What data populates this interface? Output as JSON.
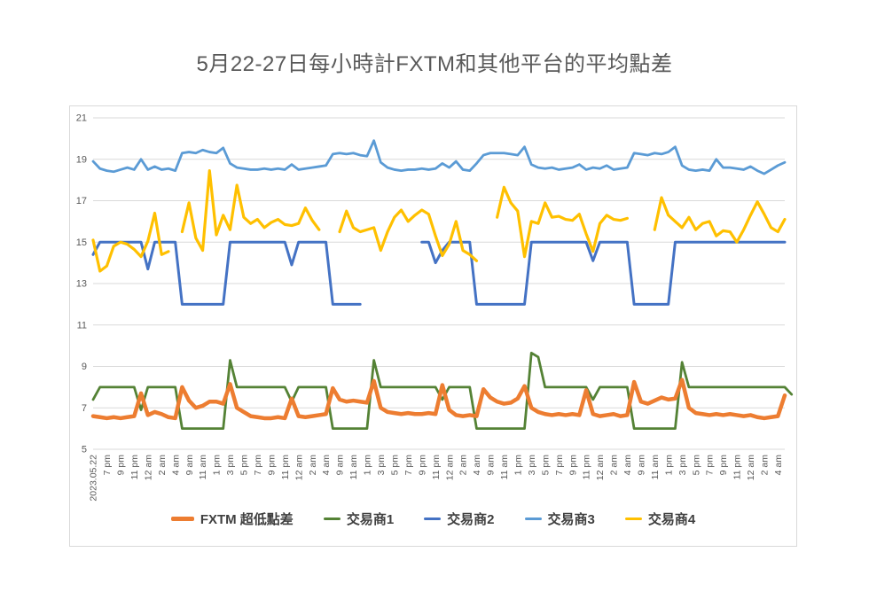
{
  "title": {
    "text": "5月22-27日每小時計FXTM和其他平台的平均點差"
  },
  "colors": {
    "title_text": "#595959",
    "axis_text": "#595959",
    "gridline": "#d9d9d9",
    "card_border": "#d9d9d9",
    "background": "#ffffff"
  },
  "chart_data": {
    "type": "line",
    "title": "5月22-27日每小時計FXTM和其他平台的平均點差",
    "xlabel": "",
    "ylabel": "",
    "ylim": [
      5,
      21
    ],
    "y_ticks": [
      21,
      19,
      17,
      15,
      13,
      11,
      9,
      7,
      5
    ],
    "grid": true,
    "legend_position": "bottom",
    "label_every_n_points": 2,
    "x_tick_labels": [
      "2023.05.22",
      "7 pm",
      "9 pm",
      "11 pm",
      "12 am",
      "2 am",
      "4 am",
      "9 am",
      "11 am",
      "1 pm",
      "3 pm",
      "5 pm",
      "7 pm",
      "9 pm",
      "11 pm",
      "12 am",
      "2 am",
      "4 am",
      "9 am",
      "11 am",
      "1 pm",
      "3 pm",
      "5 pm",
      "7 pm",
      "9 pm",
      "11 pm",
      "12 am",
      "2 am",
      "4 am",
      "9 am",
      "11 am",
      "1 pm",
      "3 pm",
      "5 pm",
      "7 pm",
      "9 pm",
      "11 pm",
      "12 am",
      "2 am",
      "4 am",
      "9 am",
      "11 am",
      "1 pm",
      "3 pm",
      "5 pm",
      "7 pm",
      "9 pm",
      "11 pm",
      "12 am",
      "2 am",
      "4 am"
    ],
    "series": [
      {
        "name": "FXTM 超低點差",
        "color": "#ED7D31",
        "width": 4.5,
        "values": [
          6.6,
          6.55,
          6.5,
          6.55,
          6.5,
          6.55,
          6.6,
          7.7,
          6.65,
          6.8,
          6.7,
          6.55,
          6.5,
          8.0,
          7.35,
          7.0,
          7.1,
          7.3,
          7.3,
          7.2,
          8.15,
          7.0,
          6.8,
          6.6,
          6.55,
          6.5,
          6.5,
          6.55,
          6.5,
          7.45,
          6.6,
          6.55,
          6.6,
          6.65,
          6.7,
          7.95,
          7.4,
          7.3,
          7.35,
          7.3,
          7.25,
          8.3,
          7.0,
          6.8,
          6.75,
          6.7,
          6.75,
          6.7,
          6.7,
          6.75,
          6.7,
          8.1,
          6.9,
          6.65,
          6.6,
          6.65,
          6.6,
          7.9,
          7.5,
          7.3,
          7.2,
          7.25,
          7.45,
          8.05,
          7.0,
          6.8,
          6.7,
          6.65,
          6.7,
          6.65,
          6.7,
          6.65,
          7.85,
          6.7,
          6.6,
          6.65,
          6.7,
          6.6,
          6.65,
          8.25,
          7.3,
          7.2,
          7.35,
          7.5,
          7.4,
          7.45,
          8.35,
          7.0,
          6.75,
          6.7,
          6.65,
          6.7,
          6.65,
          6.7,
          6.65,
          6.6,
          6.65,
          6.55,
          6.5,
          6.55,
          6.6,
          7.6
        ]
      },
      {
        "name": "交易商1",
        "color": "#548235",
        "width": 2.8,
        "values": [
          7.4,
          8,
          8,
          8,
          8,
          8,
          8,
          6.9,
          8,
          8,
          8,
          8,
          8,
          6,
          6,
          6,
          6,
          6,
          6,
          6,
          9.3,
          8,
          8,
          8,
          8,
          8,
          8,
          8,
          8,
          7.3,
          8,
          8,
          8,
          8,
          8,
          6,
          6,
          6,
          6,
          6,
          6,
          9.3,
          8,
          8,
          8,
          8,
          8,
          8,
          8,
          8,
          8,
          7.4,
          8,
          8,
          8,
          8,
          6,
          6,
          6,
          6,
          6,
          6,
          6,
          6,
          9.65,
          9.45,
          8,
          8,
          8,
          8,
          8,
          8,
          8,
          7.4,
          8,
          8,
          8,
          8,
          8,
          6,
          6,
          6,
          6,
          6,
          6,
          6,
          9.2,
          8,
          8,
          8,
          8,
          8,
          8,
          8,
          8,
          8,
          8,
          8,
          8,
          8,
          8,
          8,
          7.65
        ]
      },
      {
        "name": "交易商2",
        "color": "#4472C4",
        "width": 3,
        "values": [
          14.4,
          15,
          15,
          15,
          15,
          15,
          15,
          15,
          13.7,
          15,
          15,
          15,
          15,
          12,
          12,
          12,
          12,
          12,
          12,
          12,
          15,
          15,
          15,
          15,
          15,
          15,
          15,
          15,
          15,
          13.9,
          15,
          15,
          15,
          15,
          15,
          12,
          12,
          12,
          12,
          12,
          null,
          null,
          null,
          null,
          null,
          null,
          null,
          null,
          15,
          15,
          14.0,
          14.6,
          15,
          15,
          15,
          15,
          12,
          12,
          12,
          12,
          12,
          12,
          12,
          12,
          15,
          15,
          15,
          15,
          15,
          15,
          15,
          15,
          15,
          14.1,
          15,
          15,
          15,
          15,
          15,
          12,
          12,
          12,
          12,
          12,
          12,
          15,
          15,
          15,
          15,
          15,
          15,
          15,
          15,
          15,
          15,
          15,
          15,
          15,
          15,
          15,
          15,
          15
        ]
      },
      {
        "name": "交易商3",
        "color": "#5B9BD5",
        "width": 2.8,
        "values": [
          18.9,
          18.55,
          18.45,
          18.4,
          18.5,
          18.6,
          18.5,
          19.0,
          18.5,
          18.65,
          18.5,
          18.55,
          18.45,
          19.3,
          19.35,
          19.3,
          19.45,
          19.35,
          19.3,
          19.55,
          18.8,
          18.6,
          18.55,
          18.5,
          18.5,
          18.55,
          18.5,
          18.55,
          18.5,
          18.75,
          18.5,
          18.55,
          18.6,
          18.65,
          18.7,
          19.25,
          19.3,
          19.25,
          19.3,
          19.2,
          19.15,
          19.9,
          18.85,
          18.6,
          18.5,
          18.45,
          18.5,
          18.5,
          18.55,
          18.5,
          18.55,
          18.8,
          18.6,
          18.9,
          18.5,
          18.45,
          18.8,
          19.2,
          19.3,
          19.3,
          19.3,
          19.25,
          19.2,
          19.6,
          18.75,
          18.6,
          18.55,
          18.6,
          18.5,
          18.55,
          18.6,
          18.75,
          18.5,
          18.6,
          18.55,
          18.7,
          18.5,
          18.55,
          18.6,
          19.3,
          19.25,
          19.2,
          19.3,
          19.25,
          19.35,
          19.6,
          18.7,
          18.5,
          18.45,
          18.5,
          18.45,
          19.0,
          18.6,
          18.6,
          18.55,
          18.5,
          18.65,
          18.45,
          18.3,
          18.5,
          18.7,
          18.85
        ]
      },
      {
        "name": "交易商4",
        "color": "#FFC000",
        "width": 3.2,
        "values": [
          15.1,
          13.6,
          13.85,
          14.8,
          15.0,
          14.9,
          14.65,
          14.3,
          15.05,
          16.4,
          14.4,
          14.55,
          null,
          15.5,
          16.9,
          15.2,
          14.6,
          18.45,
          15.35,
          16.3,
          15.6,
          17.75,
          16.2,
          15.9,
          16.1,
          15.7,
          15.95,
          16.1,
          15.85,
          15.8,
          15.9,
          16.65,
          16.05,
          15.6,
          null,
          null,
          15.5,
          16.5,
          15.7,
          15.5,
          15.6,
          15.7,
          14.6,
          15.5,
          16.2,
          16.55,
          16.0,
          16.3,
          16.55,
          16.35,
          15.3,
          14.35,
          14.9,
          16.0,
          14.6,
          14.4,
          14.1,
          null,
          null,
          16.2,
          17.65,
          16.9,
          16.5,
          14.3,
          16.0,
          15.9,
          16.9,
          16.2,
          16.25,
          16.1,
          16.05,
          16.35,
          15.4,
          14.55,
          15.9,
          16.3,
          16.1,
          16.05,
          16.15,
          null,
          null,
          null,
          15.6,
          17.15,
          16.3,
          16.0,
          15.7,
          16.2,
          15.6,
          15.9,
          16.0,
          15.3,
          15.55,
          15.5,
          15.0,
          15.6,
          16.3,
          16.95,
          16.35,
          15.7,
          15.5,
          16.1
        ]
      }
    ]
  }
}
